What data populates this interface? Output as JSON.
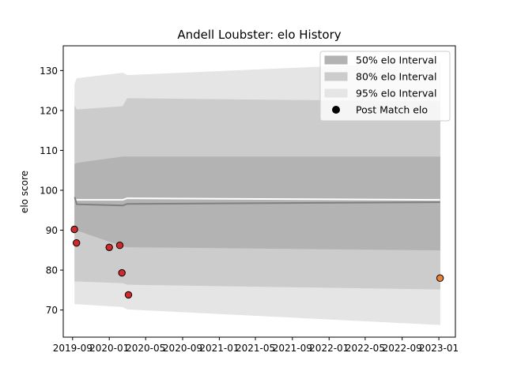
{
  "chart_data": {
    "type": "line",
    "title": "Andell Loubster: elo History",
    "xlabel": "",
    "ylabel": "elo score",
    "x_ticks": [
      "2019-09",
      "2020-01",
      "2020-05",
      "2020-09",
      "2021-01",
      "2021-05",
      "2021-09",
      "2022-01",
      "2022-05",
      "2022-09",
      "2023-01"
    ],
    "y_ticks": [
      70,
      80,
      90,
      100,
      110,
      120,
      130
    ],
    "xlim": [
      "2019-08-01",
      "2023-02-25"
    ],
    "ylim": [
      63.2,
      136.2
    ],
    "legend": {
      "position": "top-right",
      "entries": [
        {
          "label": "50% elo Interval",
          "color": "#b3b3b3"
        },
        {
          "label": "80% elo Interval",
          "color": "#cccccc"
        },
        {
          "label": "95% elo Interval",
          "color": "#e5e5e5"
        },
        {
          "label": "Post Match elo",
          "color": "#000000"
        }
      ]
    },
    "elo_line": {
      "color": "#808080",
      "points": [
        {
          "date": "2019-09-08",
          "value": 98.3
        },
        {
          "date": "2019-09-15",
          "value": 96.5
        },
        {
          "date": "2020-02-15",
          "value": 96.2
        },
        {
          "date": "2020-03-01",
          "value": 96.6
        },
        {
          "date": "2023-01-05",
          "value": 97.0
        }
      ]
    },
    "white_line": {
      "color": "#ffffff",
      "points": [
        {
          "date": "2019-09-08",
          "value": 97.6
        },
        {
          "date": "2020-02-15",
          "value": 97.6
        },
        {
          "date": "2020-03-01",
          "value": 98.0
        },
        {
          "date": "2023-01-05",
          "value": 97.6
        }
      ]
    },
    "bands": [
      {
        "name": "95% elo Interval",
        "color": "#e5e5e5",
        "points": [
          {
            "date": "2019-09-08",
            "low": 71.5,
            "high": 126.5
          },
          {
            "date": "2019-09-15",
            "low": 71.5,
            "high": 128.0
          },
          {
            "date": "2020-02-15",
            "low": 70.8,
            "high": 129.4
          },
          {
            "date": "2020-03-01",
            "low": 70.2,
            "high": 128.8
          },
          {
            "date": "2023-01-05",
            "low": 66.3,
            "high": 132.2
          }
        ]
      },
      {
        "name": "80% elo Interval",
        "color": "#cccccc",
        "points": [
          {
            "date": "2019-09-08",
            "low": 77.2,
            "high": 121.0
          },
          {
            "date": "2019-09-15",
            "low": 77.2,
            "high": 120.2
          },
          {
            "date": "2020-02-15",
            "low": 76.8,
            "high": 121.0
          },
          {
            "date": "2020-03-01",
            "low": 76.4,
            "high": 123.0
          },
          {
            "date": "2023-01-05",
            "low": 75.2,
            "high": 122.2
          }
        ]
      },
      {
        "name": "50% elo Interval",
        "color": "#b3b3b3",
        "points": [
          {
            "date": "2019-09-08",
            "low": 90.0,
            "high": 106.5
          },
          {
            "date": "2019-09-15",
            "low": 90.0,
            "high": 106.8
          },
          {
            "date": "2020-02-15",
            "low": 86.0,
            "high": 108.4
          },
          {
            "date": "2020-03-01",
            "low": 85.8,
            "high": 108.4
          },
          {
            "date": "2023-01-05",
            "low": 85.0,
            "high": 108.4
          }
        ]
      }
    ],
    "post_match": [
      {
        "date": "2019-09-07",
        "value": 90.2,
        "color": "#d62728"
      },
      {
        "date": "2019-09-14",
        "value": 86.8,
        "color": "#d62728"
      },
      {
        "date": "2020-01-01",
        "value": 85.7,
        "color": "#d62728"
      },
      {
        "date": "2020-02-05",
        "value": 86.2,
        "color": "#d62728"
      },
      {
        "date": "2020-02-12",
        "value": 79.3,
        "color": "#d62728"
      },
      {
        "date": "2020-03-05",
        "value": 73.8,
        "color": "#d62728"
      },
      {
        "date": "2023-01-05",
        "value": 78.0,
        "color": "#f08030"
      }
    ]
  }
}
